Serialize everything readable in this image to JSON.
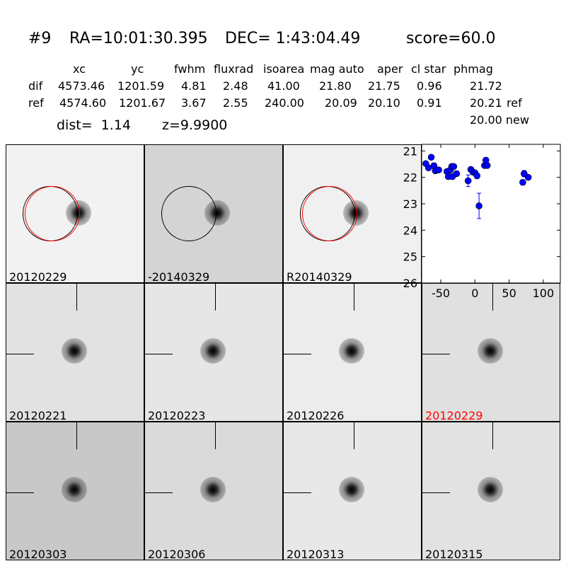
{
  "header": {
    "id": "#9",
    "ra": "RA=10:01:30.395",
    "dec": "DEC= 1:43:04.49",
    "score": "score=60.0"
  },
  "table": {
    "columns": [
      "xc",
      "yc",
      "fwhm",
      "fluxrad",
      "isoarea",
      "mag auto",
      "aper",
      "cl star",
      "phmag"
    ],
    "rows": [
      {
        "name": "dif",
        "values": [
          "4573.46",
          "1201.59",
          "4.81",
          "2.48",
          "41.00",
          "21.80",
          "21.75",
          "0.96",
          "21.72"
        ],
        "extra": ""
      },
      {
        "name": "ref",
        "values": [
          "4574.60",
          "1201.67",
          "3.67",
          "2.55",
          "240.00",
          "20.09",
          "20.10",
          "0.91",
          "20.21"
        ],
        "extra": "ref"
      }
    ],
    "new_line": "20.00 new",
    "dist": "dist=  1.14",
    "z": "z=9.9900"
  },
  "stamps": [
    {
      "label": "20120229",
      "label_color": "#000000",
      "circles": [
        "black",
        "red"
      ]
    },
    {
      "label": "-20140329",
      "label_color": "#000000",
      "circles": [
        "black"
      ]
    },
    {
      "label": "R20140329",
      "label_color": "#000000",
      "circles": [
        "black",
        "red"
      ]
    },
    {
      "label": "20120221",
      "label_color": "#000000"
    },
    {
      "label": "20120223",
      "label_color": "#000000"
    },
    {
      "label": "20120226",
      "label_color": "#000000"
    },
    {
      "label": "20120229",
      "label_color": "#ff0000"
    },
    {
      "label": "20120303",
      "label_color": "#000000"
    },
    {
      "label": "20120306",
      "label_color": "#000000"
    },
    {
      "label": "20120313",
      "label_color": "#000000"
    },
    {
      "label": "20120315",
      "label_color": "#000000"
    }
  ],
  "chart_data": {
    "type": "scatter",
    "title": "",
    "xlabel": "",
    "ylabel": "",
    "xlim": [
      -78,
      125
    ],
    "ylim": [
      26,
      20.75
    ],
    "y_inverted": true,
    "xticks": [
      "-50",
      "0",
      "50",
      "100"
    ],
    "xtick_values": [
      -50,
      0,
      50,
      100
    ],
    "yticks": [
      "21",
      "22",
      "23",
      "24",
      "25",
      "26"
    ],
    "ytick_values": [
      21,
      22,
      23,
      24,
      25,
      26
    ],
    "marker_color": "#0000ff",
    "points": [
      {
        "x": -72,
        "y": 21.48,
        "err": 0.05
      },
      {
        "x": -68,
        "y": 21.64,
        "err": 0.05
      },
      {
        "x": -64,
        "y": 21.24,
        "err": 0.04
      },
      {
        "x": -60,
        "y": 21.56,
        "err": 0.1
      },
      {
        "x": -58,
        "y": 21.75,
        "err": 0.06
      },
      {
        "x": -53,
        "y": 21.72,
        "err": 0.06
      },
      {
        "x": -41,
        "y": 21.78,
        "err": 0.06
      },
      {
        "x": -39,
        "y": 21.97,
        "err": 0.06
      },
      {
        "x": -36,
        "y": 21.72,
        "err": 0.08
      },
      {
        "x": -34,
        "y": 21.59,
        "err": 0.06
      },
      {
        "x": -33,
        "y": 21.97,
        "err": 0.06
      },
      {
        "x": -31,
        "y": 21.59,
        "err": 0.06
      },
      {
        "x": -27,
        "y": 21.86,
        "err": 0.06
      },
      {
        "x": -10,
        "y": 22.13,
        "err": 0.22
      },
      {
        "x": -6,
        "y": 21.7,
        "err": 0.08
      },
      {
        "x": -3,
        "y": 21.8,
        "err": 0.08
      },
      {
        "x": 0,
        "y": 21.83,
        "err": 0.08
      },
      {
        "x": 3,
        "y": 21.94,
        "err": 0.1
      },
      {
        "x": 6,
        "y": 23.08,
        "err": 0.48
      },
      {
        "x": 14,
        "y": 21.55,
        "err": 0.05
      },
      {
        "x": 16,
        "y": 21.35,
        "err": 0.05
      },
      {
        "x": 18,
        "y": 21.55,
        "err": 0.05
      },
      {
        "x": 70,
        "y": 22.19,
        "err": 0.1
      },
      {
        "x": 72,
        "y": 21.86,
        "err": 0.12
      },
      {
        "x": 78,
        "y": 22.0,
        "err": 0.06
      }
    ]
  }
}
